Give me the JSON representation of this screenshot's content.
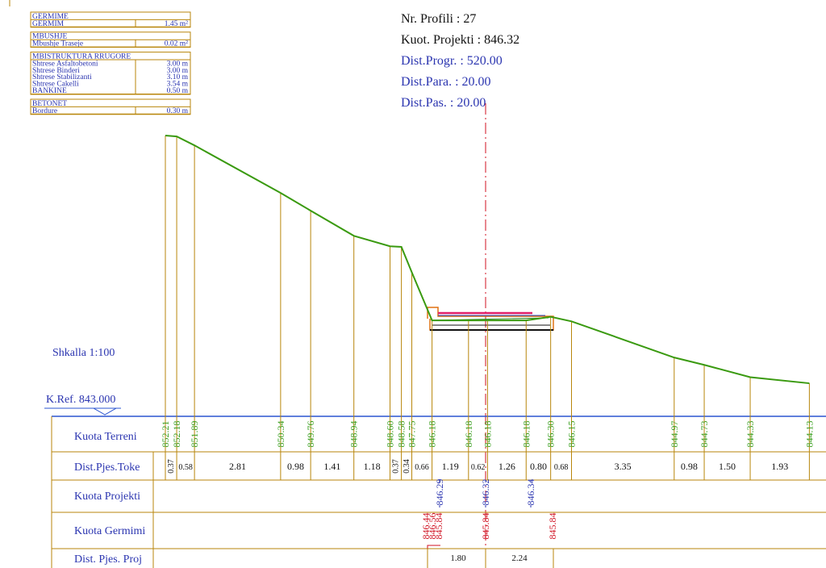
{
  "tables": [
    {
      "header": "GERMIME",
      "rows": [
        [
          "GERMIM",
          "1.45 m²"
        ]
      ]
    },
    {
      "header": "MBUSHJE",
      "rows": [
        [
          "Mbushje Traseje",
          "0.02 m²"
        ]
      ]
    },
    {
      "header": "MBISTRUKTURA RRUGORE",
      "rows": [
        [
          "Shtrese Asfaltobetoni",
          "3.00 m"
        ],
        [
          "Shtrese Binderi",
          "3.00 m"
        ],
        [
          "Shtrese Stabilizanti",
          "3.10 m"
        ],
        [
          "Shtrese Cakelli",
          "3.54 m"
        ],
        [
          "BANKINE",
          "0.50 m"
        ]
      ]
    },
    {
      "header": "BETONET",
      "rows": [
        [
          "Bordure",
          "0.30 m"
        ]
      ]
    }
  ],
  "info": [
    "Nr. Profili : 27",
    "Kuot. Projekti : 846.32",
    "Dist.Progr. : 520.00",
    "Dist.Para. : 20.00",
    "Dist.Pas. : 20.00"
  ],
  "scale": "Shkalla 1:100",
  "k_ref": {
    "label": "K.Ref.",
    "value": "843.000"
  },
  "row_labels": [
    "Kuota Terreni",
    "Dist.Pjes.Toke",
    "Kuota Projekti",
    "Kuota Germimi",
    "Dist. Pjes. Proj"
  ],
  "terrain": {
    "elevations": [
      "852.21",
      "852.18",
      "851.89",
      "850.34",
      "849.76",
      "848.94",
      "848.60",
      "848.58",
      "847.75",
      "846.18",
      "846.18",
      "846.18",
      "846.18",
      "846.30",
      "846.15",
      "844.97",
      "844.73",
      "844.33",
      "844.13"
    ],
    "distances": [
      "0.37",
      "0.58",
      "2.81",
      "0.98",
      "1.41",
      "1.18",
      "0.37",
      "0.34",
      "0.66",
      "1.19",
      "0.62",
      "1.26",
      "0.80",
      "0.68",
      "3.35",
      "0.98",
      "1.50",
      "1.93"
    ]
  },
  "project": {
    "elevations": [
      "846.29",
      "846.32",
      "846.34"
    ]
  },
  "excavation": {
    "elevations": [
      "846.44",
      "846.56",
      "845.84",
      "845.84",
      "845.84"
    ]
  },
  "project_distances": [
    "1.80",
    "2.24"
  ]
}
